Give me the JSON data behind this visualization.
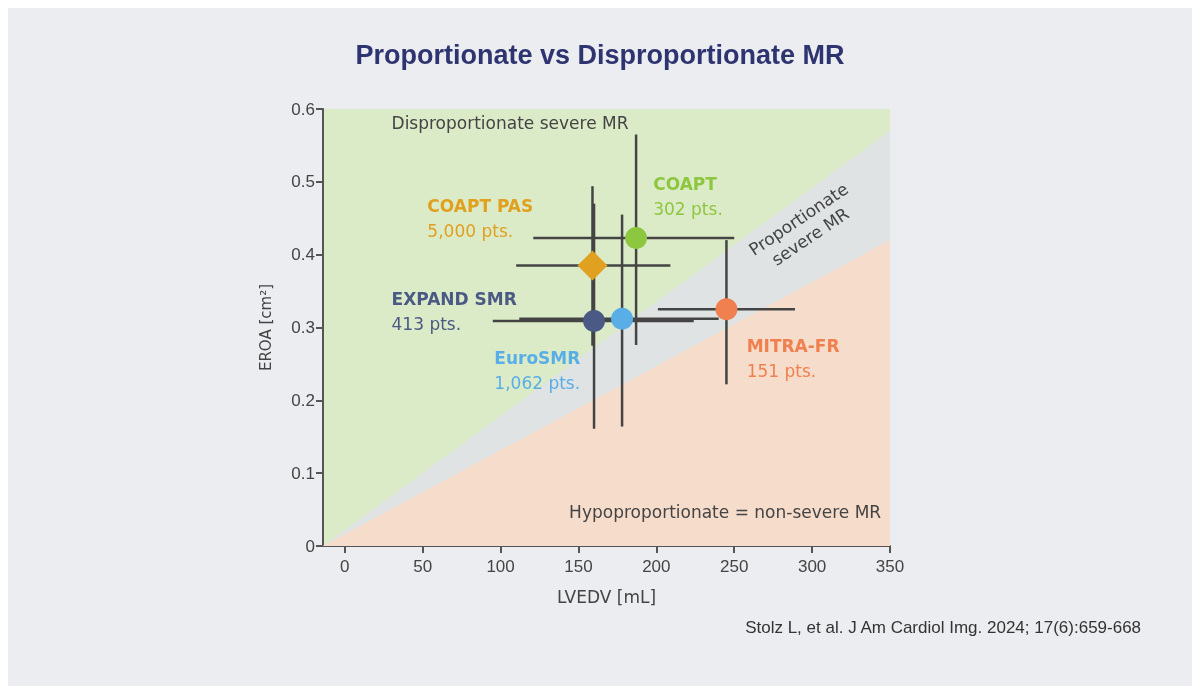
{
  "chart_data": {
    "type": "scatter",
    "title": "Proportionate vs Disproportionate MR",
    "xlabel": "LVEDV [mL]",
    "ylabel": "EROA [cm²]",
    "xlim": [
      -14,
      350
    ],
    "ylim": [
      0,
      0.6
    ],
    "xticks": [
      0,
      50,
      100,
      150,
      200,
      250,
      300,
      350
    ],
    "yticks": [
      0,
      0.1,
      0.2,
      0.3,
      0.4,
      0.5,
      0.6
    ],
    "grid": false,
    "legend": false,
    "series": [
      {
        "type": "area",
        "color": "#dfe3e3",
        "x": [
          -14,
          350
        ],
        "values": [
          0,
          0.57
        ]
      },
      {
        "type": "area",
        "color": "#f6dccb",
        "x": [
          -14,
          350
        ],
        "values": [
          0,
          0.42
        ]
      },
      {
        "name": "COAPT PAS",
        "color": "#e0a020",
        "marker": "diamond",
        "x": [
          159
        ],
        "values": [
          0.385
        ],
        "errors": [
          [
            0.275,
            0.494
          ]
        ],
        "xerrors": [
          [
            110,
            209
          ]
        ]
      },
      {
        "name": "COAPT",
        "color": "#8dc63f",
        "x": [
          187
        ],
        "values": [
          0.423
        ],
        "errors": [
          [
            0.276,
            0.565
          ]
        ],
        "xerrors": [
          [
            121,
            250
          ]
        ]
      },
      {
        "name": "EXPAND SMR",
        "color": "#4a5a85",
        "x": [
          160
        ],
        "values": [
          0.309
        ],
        "errors": [
          [
            0.161,
            0.47
          ]
        ],
        "xerrors": [
          [
            95,
            224
          ]
        ]
      },
      {
        "name": "EuroSMR",
        "color": "#5aaee8",
        "x": [
          178
        ],
        "values": [
          0.312
        ],
        "errors": [
          [
            0.164,
            0.455
          ]
        ],
        "xerrors": [
          [
            112,
            240
          ]
        ]
      },
      {
        "name": "MITRA-FR",
        "color": "#f08050",
        "x": [
          245
        ],
        "values": [
          0.325
        ],
        "errors": [
          [
            0.222,
            0.42
          ]
        ],
        "xerrors": [
          [
            201,
            289
          ]
        ]
      }
    ],
    "annotations": [
      "5,000 pts.",
      "302 pts.",
      "413 pts.",
      "1,062 pts.",
      "151 pts.",
      "Disproportionate severe MR",
      "Proportionate\nsevere MR",
      "Hypoproportionate = non-severe MR",
      "Stolz L, et al. J Am Cardiol Img. 2024; 17(6):659-668"
    ]
  }
}
